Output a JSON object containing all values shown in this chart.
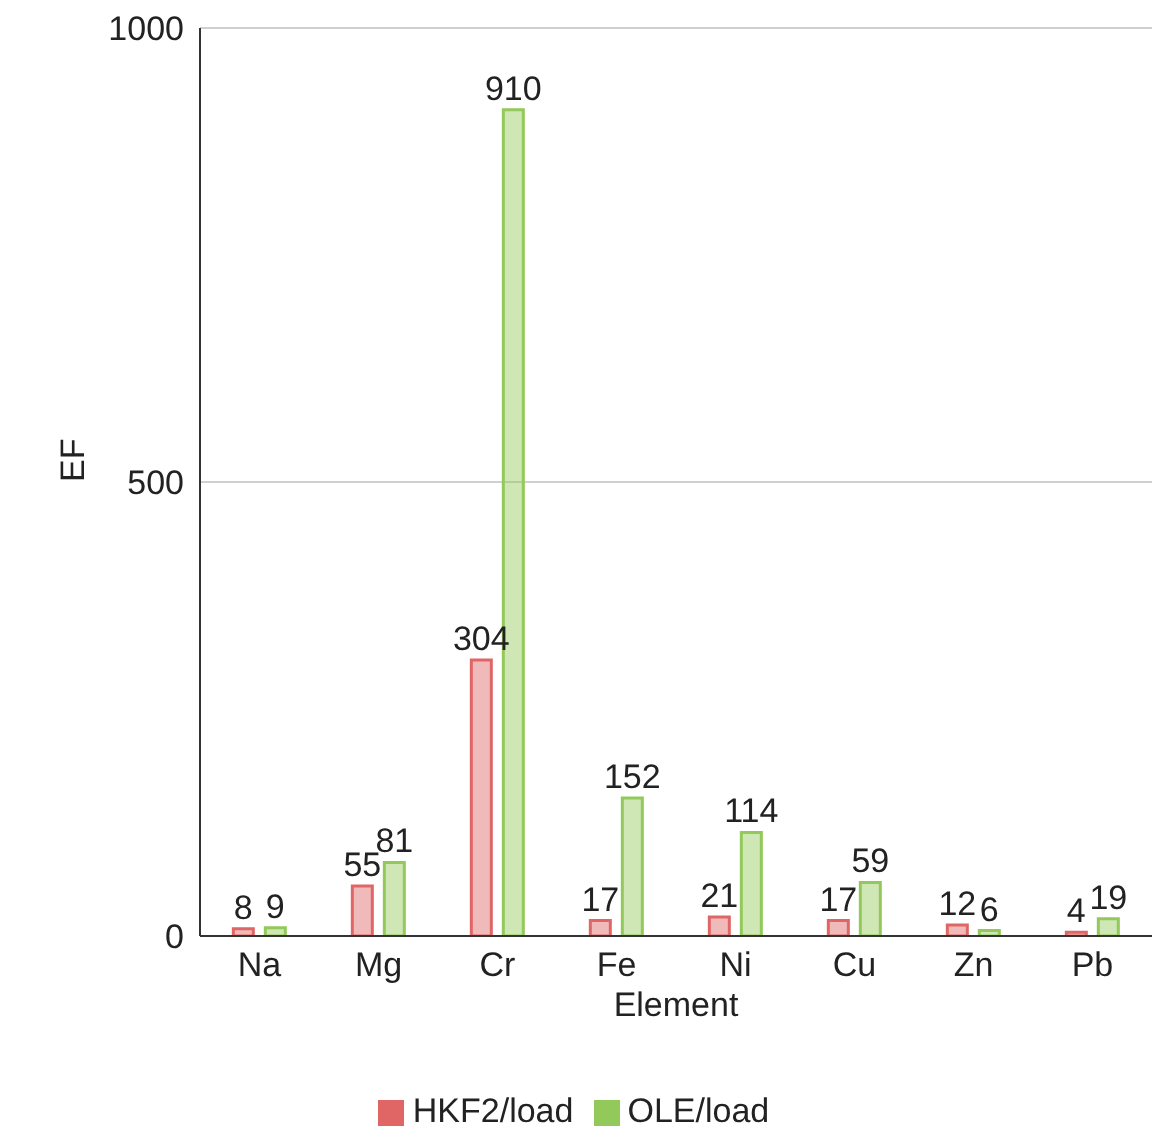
{
  "chart_data": {
    "type": "bar",
    "xlabel": "Element",
    "ylabel": "EF",
    "categories": [
      "Na",
      "Mg",
      "Cr",
      "Fe",
      "Ni",
      "Cu",
      "Zn",
      "Pb"
    ],
    "series": [
      {
        "name": "HKF2/load",
        "color": "#e06666",
        "values": [
          8,
          55,
          304,
          17,
          21,
          17,
          12,
          4
        ]
      },
      {
        "name": "OLE/load",
        "color": "#93c95a",
        "values": [
          9,
          81,
          910,
          152,
          114,
          59,
          6,
          19
        ]
      }
    ],
    "ylim": [
      0,
      1000
    ],
    "yticks": [
      0,
      500,
      1000
    ],
    "grid": "y",
    "legend": "bottom",
    "data_labels": true
  }
}
